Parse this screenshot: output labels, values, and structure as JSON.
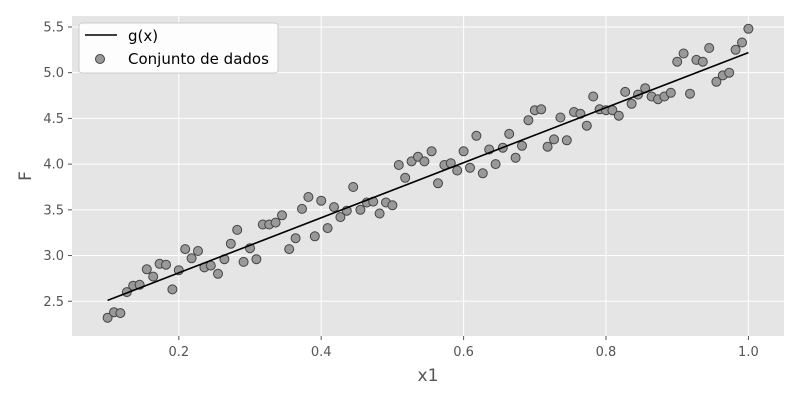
{
  "chart_data": {
    "type": "scatter",
    "xlabel": "x1",
    "ylabel": "F",
    "xlim": [
      0.05,
      1.05
    ],
    "ylim": [
      2.12,
      5.62
    ],
    "xticks": [
      0.2,
      0.4,
      0.6,
      0.8,
      1.0
    ],
    "xtick_labels": [
      "0.2",
      "0.4",
      "0.6",
      "0.8",
      "1.0"
    ],
    "yticks": [
      2.5,
      3.0,
      3.5,
      4.0,
      4.5,
      5.0,
      5.5
    ],
    "ytick_labels": [
      "2.5",
      "3.0",
      "3.5",
      "4.0",
      "4.5",
      "5.0",
      "5.5"
    ],
    "grid": true,
    "legend_position": "top-left",
    "legend": [
      "g(x)",
      "Conjunto de dados"
    ],
    "colors": {
      "background": "#e5e5e5",
      "grid": "#ffffff",
      "line": "#000000",
      "marker_fill": "#999999",
      "marker_edge": "#444444"
    },
    "series": [
      {
        "name": "g(x)",
        "kind": "line",
        "x": [
          0.1,
          1.0
        ],
        "y": [
          2.51,
          5.22
        ]
      },
      {
        "name": "Conjunto de dados",
        "kind": "scatter",
        "x": [
          0.1,
          0.109,
          0.118,
          0.127,
          0.136,
          0.145,
          0.155,
          0.164,
          0.173,
          0.182,
          0.191,
          0.2,
          0.209,
          0.218,
          0.227,
          0.236,
          0.245,
          0.255,
          0.264,
          0.273,
          0.282,
          0.291,
          0.3,
          0.309,
          0.318,
          0.327,
          0.336,
          0.345,
          0.355,
          0.364,
          0.373,
          0.382,
          0.391,
          0.4,
          0.409,
          0.418,
          0.427,
          0.436,
          0.445,
          0.455,
          0.464,
          0.473,
          0.482,
          0.491,
          0.5,
          0.509,
          0.518,
          0.527,
          0.536,
          0.545,
          0.555,
          0.564,
          0.573,
          0.582,
          0.591,
          0.6,
          0.609,
          0.618,
          0.627,
          0.636,
          0.645,
          0.655,
          0.664,
          0.673,
          0.682,
          0.691,
          0.7,
          0.709,
          0.718,
          0.727,
          0.736,
          0.745,
          0.755,
          0.764,
          0.773,
          0.782,
          0.791,
          0.8,
          0.809,
          0.818,
          0.827,
          0.836,
          0.845,
          0.855,
          0.864,
          0.873,
          0.882,
          0.891,
          0.9,
          0.909,
          0.918,
          0.927,
          0.936,
          0.945,
          0.955,
          0.964,
          0.973,
          0.982,
          0.991,
          1.0
        ],
        "y": [
          2.32,
          2.38,
          2.37,
          2.6,
          2.67,
          2.68,
          2.85,
          2.77,
          2.91,
          2.9,
          2.63,
          2.84,
          3.07,
          2.97,
          3.05,
          2.87,
          2.89,
          2.8,
          2.96,
          3.13,
          3.28,
          2.93,
          3.08,
          2.96,
          3.34,
          3.34,
          3.36,
          3.44,
          3.07,
          3.19,
          3.51,
          3.64,
          3.21,
          3.6,
          3.3,
          3.53,
          3.42,
          3.49,
          3.75,
          3.5,
          3.58,
          3.59,
          3.46,
          3.58,
          3.55,
          3.99,
          3.85,
          4.03,
          4.08,
          4.03,
          4.14,
          3.79,
          3.99,
          4.01,
          3.93,
          4.14,
          3.96,
          4.31,
          3.9,
          4.16,
          4.0,
          4.18,
          4.33,
          4.07,
          4.2,
          4.48,
          4.59,
          4.6,
          4.19,
          4.27,
          4.51,
          4.26,
          4.57,
          4.55,
          4.42,
          4.74,
          4.6,
          4.59,
          4.59,
          4.53,
          4.79,
          4.66,
          4.76,
          4.83,
          4.74,
          4.71,
          4.74,
          4.78,
          5.12,
          5.21,
          4.77,
          5.14,
          5.12,
          5.27,
          4.9,
          4.97,
          5.0,
          5.25,
          5.33,
          5.48
        ]
      }
    ]
  }
}
